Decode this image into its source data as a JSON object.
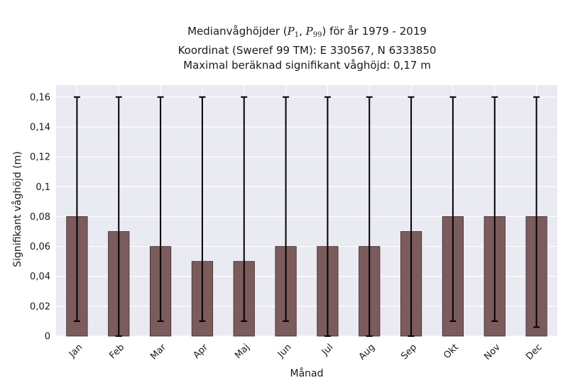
{
  "title": {
    "line1_prefix": "Medianvåghöjder (",
    "p_symbol": "P",
    "p1_sub": "1",
    "p99_sub": "99",
    "line1_suffix": ") för år 1979 - 2019",
    "line2": "Koordinat (Sweref 99 TM): E 330567, N 6333850",
    "line3": "Maximal beräknad signifikant våghöjd: 0,17 m"
  },
  "chart_data": {
    "type": "bar",
    "xlabel": "Månad",
    "ylabel": "Signifikant våghöjd (m)",
    "ylim": [
      0,
      0.168
    ],
    "yticks": [
      0,
      0.02,
      0.04,
      0.06,
      0.08,
      0.1,
      0.12,
      0.14,
      0.16
    ],
    "ytick_labels": [
      "0",
      "0,02",
      "0,04",
      "0,06",
      "0,08",
      "0,1",
      "0,12",
      "0,14",
      "0,16"
    ],
    "categories": [
      "Jan",
      "Feb",
      "Mar",
      "Apr",
      "Maj",
      "Jun",
      "Jul",
      "Aug",
      "Sep",
      "Okt",
      "Nov",
      "Dec"
    ],
    "values": [
      0.08,
      0.07,
      0.06,
      0.05,
      0.05,
      0.06,
      0.06,
      0.06,
      0.07,
      0.08,
      0.08,
      0.08
    ],
    "p1": [
      0.01,
      0.0,
      0.01,
      0.01,
      0.01,
      0.01,
      0.0,
      0.0,
      0.0,
      0.01,
      0.01,
      0.006
    ],
    "p99": [
      0.16,
      0.16,
      0.16,
      0.16,
      0.16,
      0.16,
      0.16,
      0.16,
      0.16,
      0.16,
      0.16,
      0.16
    ],
    "grid": true,
    "colors": {
      "bar": "#7b5b5b",
      "bar_edge": "#3d2b2b",
      "error_bar": "#000000",
      "plot_background": "#eaeaf2",
      "grid": "#ffffff"
    }
  }
}
